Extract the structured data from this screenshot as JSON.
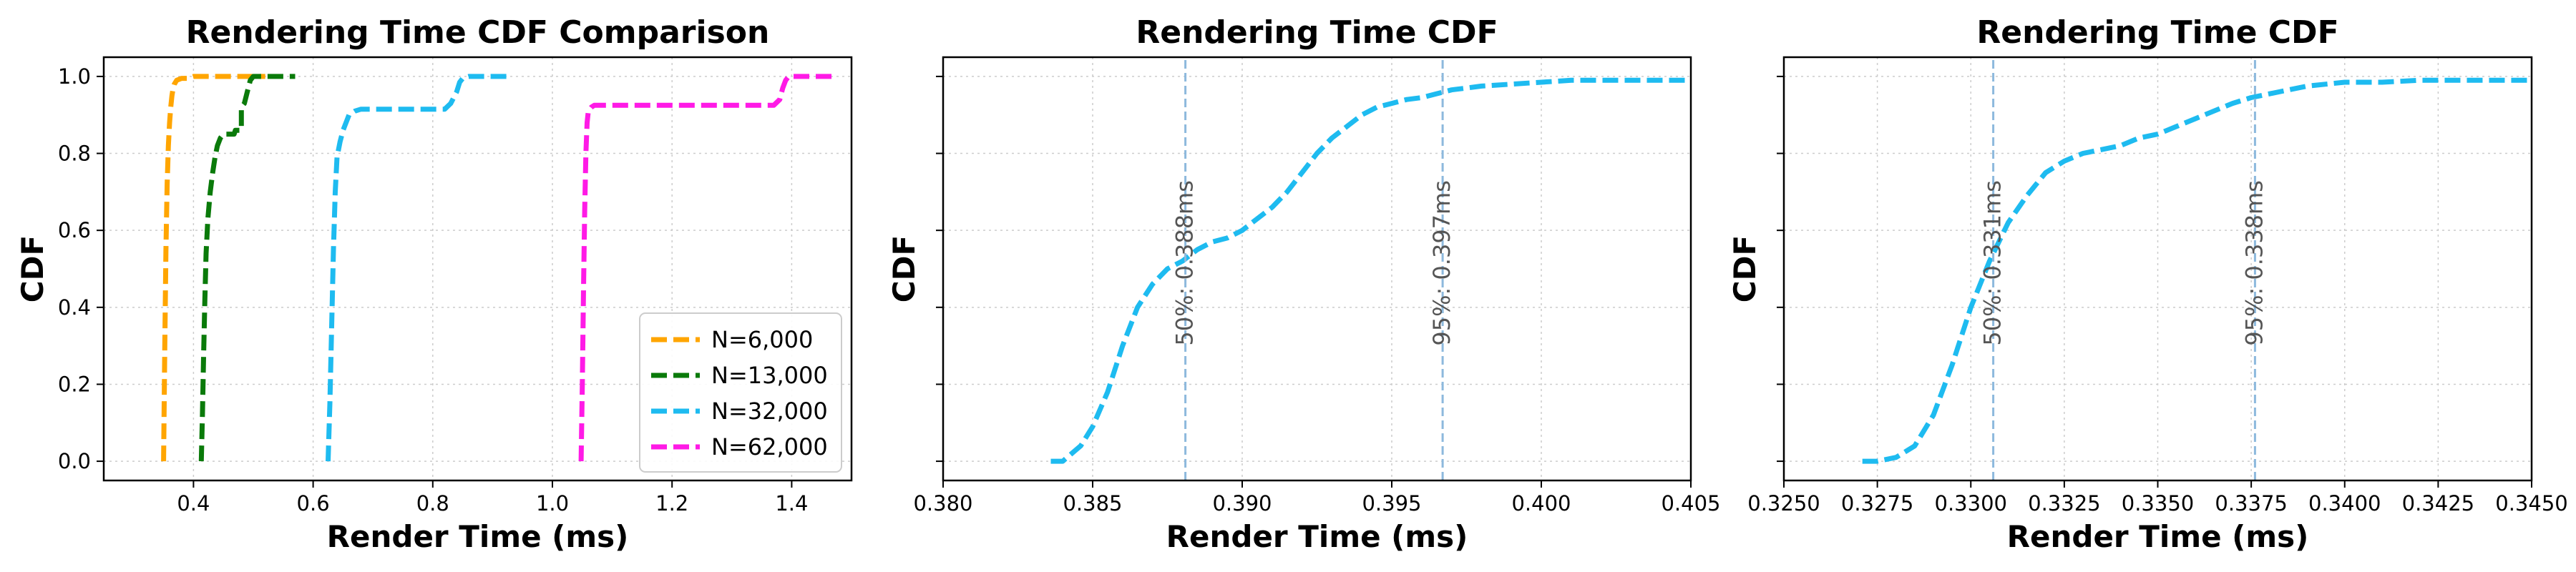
{
  "chart_data": [
    {
      "type": "line",
      "title": "Rendering Time CDF Comparison",
      "xlabel": "Render Time (ms)",
      "ylabel": "CDF",
      "xlim": [
        0.25,
        1.5
      ],
      "ylim": [
        -0.05,
        1.05
      ],
      "xticks": [
        0.4,
        0.6,
        0.8,
        1.0,
        1.2,
        1.4
      ],
      "xtick_labels": [
        "0.4",
        "0.6",
        "0.8",
        "1.0",
        "1.2",
        "1.4"
      ],
      "yticks": [
        0.0,
        0.2,
        0.4,
        0.6,
        0.8,
        1.0
      ],
      "ytick_labels": [
        "0.0",
        "0.2",
        "0.4",
        "0.6",
        "0.8",
        "1.0"
      ],
      "ytick_labels_visible": true,
      "grid": true,
      "legend_position": "lower-right",
      "series": [
        {
          "name": "N=6,000",
          "color": "#FFA500",
          "x": [
            0.35,
            0.352,
            0.354,
            0.356,
            0.358,
            0.36,
            0.362,
            0.364,
            0.366,
            0.368,
            0.372,
            0.38,
            0.39,
            0.4,
            0.42,
            0.45,
            0.48,
            0.5,
            0.52
          ],
          "y": [
            0.0,
            0.3,
            0.55,
            0.72,
            0.82,
            0.88,
            0.92,
            0.95,
            0.97,
            0.98,
            0.99,
            0.995,
            0.995,
            1.0,
            1.0,
            1.0,
            1.0,
            1.0,
            1.0
          ]
        },
        {
          "name": "N=13,000",
          "color": "#0A7A0A",
          "x": [
            0.413,
            0.415,
            0.417,
            0.419,
            0.421,
            0.424,
            0.428,
            0.432,
            0.436,
            0.44,
            0.445,
            0.45,
            0.46,
            0.468,
            0.47,
            0.48,
            0.48,
            0.485,
            0.49,
            0.495,
            0.5,
            0.52,
            0.55,
            0.57
          ],
          "y": [
            0.0,
            0.12,
            0.28,
            0.42,
            0.54,
            0.63,
            0.7,
            0.75,
            0.79,
            0.82,
            0.84,
            0.85,
            0.85,
            0.85,
            0.86,
            0.86,
            0.92,
            0.93,
            0.96,
            0.99,
            1.0,
            1.0,
            1.0,
            1.0
          ]
        },
        {
          "name": "N=32,000",
          "color": "#1EBBF0",
          "x": [
            0.625,
            0.628,
            0.631,
            0.634,
            0.637,
            0.64,
            0.645,
            0.65,
            0.655,
            0.66,
            0.67,
            0.68,
            0.7,
            0.75,
            0.8,
            0.82,
            0.83,
            0.84,
            0.845,
            0.85,
            0.86,
            0.87,
            0.9,
            0.93
          ],
          "y": [
            0.0,
            0.15,
            0.35,
            0.55,
            0.7,
            0.79,
            0.83,
            0.86,
            0.88,
            0.9,
            0.91,
            0.915,
            0.915,
            0.915,
            0.915,
            0.915,
            0.93,
            0.96,
            0.985,
            0.995,
            1.0,
            1.0,
            1.0,
            1.0
          ]
        },
        {
          "name": "N=62,000",
          "color": "#FF1AE6",
          "x": [
            1.048,
            1.05,
            1.052,
            1.054,
            1.056,
            1.058,
            1.06,
            1.065,
            1.07,
            1.08,
            1.1,
            1.15,
            1.2,
            1.3,
            1.37,
            1.38,
            1.385,
            1.39,
            1.395,
            1.4,
            1.42,
            1.45,
            1.47
          ],
          "y": [
            0.0,
            0.2,
            0.45,
            0.65,
            0.8,
            0.88,
            0.91,
            0.92,
            0.925,
            0.925,
            0.925,
            0.925,
            0.925,
            0.925,
            0.925,
            0.94,
            0.97,
            0.99,
            1.0,
            1.0,
            1.0,
            1.0,
            1.0
          ]
        }
      ]
    },
    {
      "type": "line",
      "title": "Rendering Time CDF",
      "xlabel": "Render Time (ms)",
      "ylabel": "CDF",
      "xlim": [
        0.38,
        0.405
      ],
      "ylim": [
        -0.05,
        1.05
      ],
      "xticks": [
        0.38,
        0.385,
        0.39,
        0.395,
        0.4,
        0.405
      ],
      "xtick_labels": [
        "0.380",
        "0.385",
        "0.390",
        "0.395",
        "0.400",
        "0.405"
      ],
      "yticks": [
        0.0,
        0.2,
        0.4,
        0.6,
        0.8,
        1.0
      ],
      "ytick_labels_visible": false,
      "grid": true,
      "series": [
        {
          "color": "#1EBBF0",
          "x": [
            0.3836,
            0.384,
            0.3843,
            0.3846,
            0.385,
            0.3855,
            0.386,
            0.3865,
            0.387,
            0.3875,
            0.388,
            0.3885,
            0.389,
            0.3895,
            0.39,
            0.3905,
            0.391,
            0.3915,
            0.392,
            0.3925,
            0.393,
            0.3935,
            0.394,
            0.3945,
            0.395,
            0.3955,
            0.396,
            0.3965,
            0.397,
            0.3975,
            0.398,
            0.399,
            0.4,
            0.401,
            0.405
          ],
          "y": [
            0.0,
            0.0,
            0.02,
            0.04,
            0.09,
            0.18,
            0.3,
            0.4,
            0.46,
            0.5,
            0.52,
            0.55,
            0.57,
            0.58,
            0.6,
            0.63,
            0.66,
            0.7,
            0.75,
            0.8,
            0.84,
            0.87,
            0.9,
            0.92,
            0.93,
            0.94,
            0.945,
            0.955,
            0.965,
            0.97,
            0.975,
            0.98,
            0.985,
            0.99,
            0.99
          ]
        },
        {
          "x": [
            0.3881,
            0.3881
          ],
          "y": [
            -0.05,
            1.05
          ],
          "kind": "vline",
          "label": "50%: 0.388ms"
        },
        {
          "x": [
            0.3967,
            0.3967
          ],
          "y": [
            -0.05,
            1.05
          ],
          "kind": "vline",
          "label": "95%: 0.397ms"
        }
      ]
    },
    {
      "type": "line",
      "title": "Rendering Time CDF",
      "xlabel": "Render Time (ms)",
      "ylabel": "CDF",
      "xlim": [
        0.325,
        0.345
      ],
      "ylim": [
        -0.05,
        1.05
      ],
      "xticks": [
        0.325,
        0.3275,
        0.33,
        0.3325,
        0.335,
        0.3375,
        0.34,
        0.3425,
        0.345
      ],
      "xtick_labels": [
        "0.3250",
        "0.3275",
        "0.3300",
        "0.3325",
        "0.3350",
        "0.3375",
        "0.3400",
        "0.3425",
        "0.3450"
      ],
      "yticks": [
        0.0,
        0.2,
        0.4,
        0.6,
        0.8,
        1.0
      ],
      "ytick_labels_visible": false,
      "grid": true,
      "series": [
        {
          "color": "#1EBBF0",
          "x": [
            0.3271,
            0.3275,
            0.328,
            0.3285,
            0.329,
            0.3295,
            0.33,
            0.3305,
            0.331,
            0.3315,
            0.332,
            0.3325,
            0.333,
            0.3335,
            0.334,
            0.3345,
            0.335,
            0.3355,
            0.336,
            0.3365,
            0.337,
            0.3375,
            0.338,
            0.3385,
            0.339,
            0.3395,
            0.34,
            0.341,
            0.342,
            0.343,
            0.345
          ],
          "y": [
            0.0,
            0.0,
            0.01,
            0.04,
            0.12,
            0.25,
            0.4,
            0.52,
            0.62,
            0.69,
            0.75,
            0.78,
            0.8,
            0.81,
            0.82,
            0.84,
            0.85,
            0.87,
            0.89,
            0.91,
            0.93,
            0.945,
            0.955,
            0.965,
            0.975,
            0.98,
            0.985,
            0.985,
            0.99,
            0.99,
            0.99
          ]
        },
        {
          "x": [
            0.3306,
            0.3306
          ],
          "y": [
            -0.05,
            1.05
          ],
          "kind": "vline",
          "label": "50%: 0.331ms"
        },
        {
          "x": [
            0.3376,
            0.3376
          ],
          "y": [
            -0.05,
            1.05
          ],
          "kind": "vline",
          "label": "95%: 0.338ms"
        }
      ]
    }
  ]
}
